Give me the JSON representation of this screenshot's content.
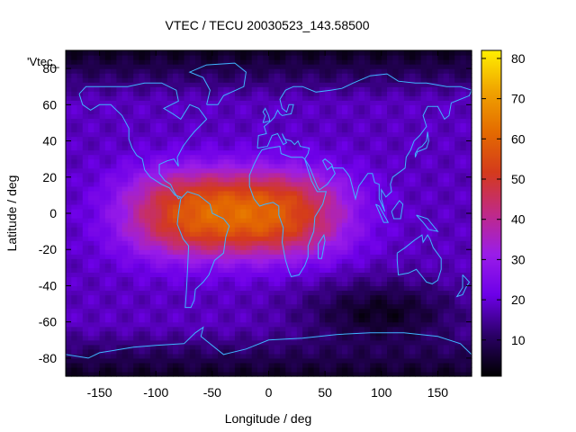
{
  "chart_data": {
    "type": "heatmap",
    "title": "VTEC / TECU 20030523_143.58500",
    "xlabel": "Longitude / deg",
    "ylabel": "Latitude / deg",
    "series_label": "'Vtec_",
    "xlim": [
      -180,
      180
    ],
    "ylim": [
      -90,
      90
    ],
    "x_ticks": [
      -150,
      -100,
      -50,
      0,
      50,
      100,
      150
    ],
    "y_ticks": [
      -80,
      -60,
      -40,
      -20,
      0,
      20,
      40,
      60,
      80
    ],
    "colorbar": {
      "range": [
        1,
        82
      ],
      "ticks": [
        10,
        20,
        30,
        40,
        50,
        60,
        70,
        80
      ],
      "palette": [
        "#000000",
        "#2a0066",
        "#6d00e8",
        "#9a1de8",
        "#c02a86",
        "#d43a1c",
        "#e46b00",
        "#f0a300",
        "#ffef00"
      ]
    },
    "model": {
      "lon_grid_step": 5,
      "lat_grid_step": 2.5,
      "background_vtec": 18,
      "equatorial_peak": {
        "center_lon": -30,
        "center_lat": 0,
        "peak_vtec": 62,
        "lon_halfwidth": 95,
        "lat_halfwidth": 24
      },
      "southern_low": {
        "center_lon": 100,
        "center_lat": -55,
        "depth_vtec": 14
      },
      "polar_vtec": 4
    },
    "continent_outline_color": "#3fb6ff"
  }
}
